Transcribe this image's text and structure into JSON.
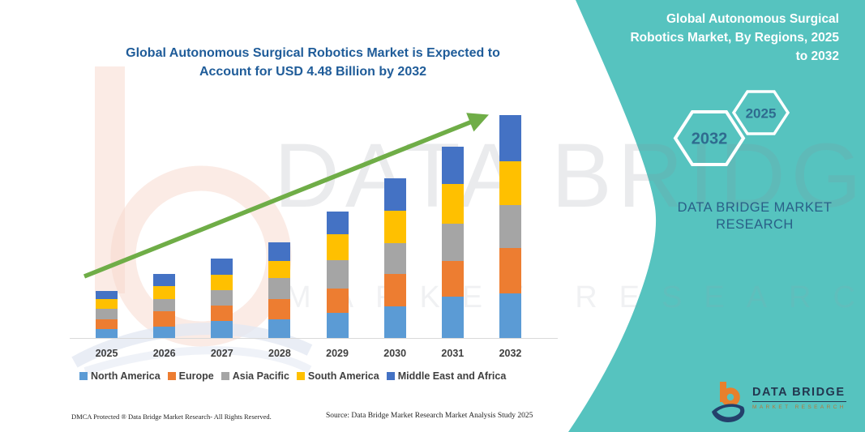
{
  "colors": {
    "teal_panel": "#56C3BF",
    "title_blue": "#1F5C99",
    "arrow_green": "#6FAD47",
    "axis_gray": "#D9D9D9",
    "label_gray": "#3F3F3F",
    "logo_orange": "#E8802C",
    "logo_navy": "#24406B",
    "watermark_salmon": "#F8D7CC"
  },
  "main_title": {
    "lines": [
      "Global Autonomous Surgical Robotics Market is Expected to",
      "Account for USD 4.48 Billion by 2032"
    ]
  },
  "chart_data": {
    "type": "bar",
    "stacked": true,
    "title": "Global Autonomous Surgical Robotics Market is Expected to Account for USD 4.48 Billion by 2032",
    "unit": "USD Billion",
    "categories": [
      "2025",
      "2026",
      "2027",
      "2028",
      "2029",
      "2030",
      "2031",
      "2032"
    ],
    "series": [
      {
        "name": "North America",
        "color": "#5B9BD5",
        "values": [
          0.18,
          0.22,
          0.34,
          0.37,
          0.5,
          0.64,
          0.83,
          0.9
        ]
      },
      {
        "name": "Europe",
        "color": "#ED7D31",
        "values": [
          0.19,
          0.32,
          0.31,
          0.41,
          0.49,
          0.65,
          0.71,
          0.91
        ]
      },
      {
        "name": "Asia Pacific",
        "color": "#A5A5A5",
        "values": [
          0.21,
          0.24,
          0.31,
          0.43,
          0.58,
          0.61,
          0.76,
          0.87
        ]
      },
      {
        "name": "South America",
        "color": "#FFC000",
        "values": [
          0.2,
          0.26,
          0.31,
          0.34,
          0.51,
          0.66,
          0.79,
          0.88
        ]
      },
      {
        "name": "Middle East and Africa",
        "color": "#4472C4",
        "values": [
          0.16,
          0.24,
          0.33,
          0.37,
          0.46,
          0.65,
          0.76,
          0.92
        ]
      }
    ],
    "totals": [
      0.94,
      1.28,
      1.6,
      1.92,
      2.54,
      3.21,
      3.85,
      4.48
    ],
    "ylim": [
      0,
      4.6
    ],
    "gridlines": false,
    "legend_position": "bottom",
    "annotations": [
      "upward green trend arrow"
    ]
  },
  "right_panel": {
    "title_lines": [
      "Global Autonomous Surgical",
      "Robotics Market, By Regions, 2025",
      "to 2032"
    ],
    "hexagons": [
      {
        "label": "2032"
      },
      {
        "label": "2025"
      }
    ],
    "brand_lines": [
      "DATA BRIDGE MARKET",
      "RESEARCH"
    ]
  },
  "watermark": {
    "brand": "DATA BRIDGE",
    "sub": "MARKET RESEARCH"
  },
  "logo": {
    "title": "DATA BRIDGE",
    "subtitle": "MARKET RESEARCH"
  },
  "footer": {
    "left": "DMCA Protected ® Data Bridge Market Research-  All Rights Reserved.",
    "source": "Source: Data Bridge Market Research  Market Analysis Study 2025"
  }
}
